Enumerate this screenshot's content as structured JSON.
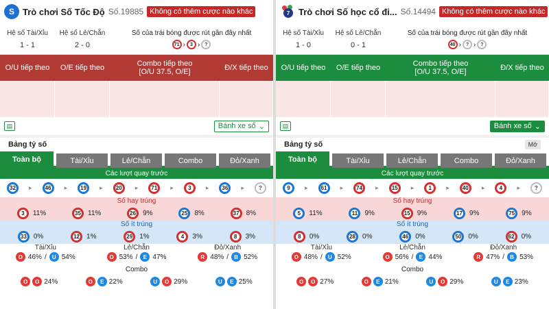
{
  "panels": [
    {
      "title": "Trò chơi Số Tốc Độ",
      "draw": "Số.19885",
      "badge": "Không có thêm cược nào khác",
      "logo": "S",
      "ou_ratio_label": "Hệ số Tài/Xỉu",
      "ou_ratio": "1 - 1",
      "oe_ratio_label": "Hệ số Lẻ/Chẵn",
      "oe_ratio": "2 - 0",
      "recent_label": "Số của trái bóng được rút gần đây nhất",
      "recent": [
        "71",
        "3",
        "?"
      ],
      "headers": {
        "ou": "O/U tiếp theo",
        "oe": "O/E tiếp theo",
        "combo1": "Combo tiếp theo",
        "combo2": "[O/U 37.5, O/E]",
        "rb": "Đ/X tiếp theo"
      },
      "wheel": "Bánh xe số",
      "board": "Bảng tỷ số",
      "mo": "",
      "tabs": [
        "Toàn bộ",
        "Tài/Xỉu",
        "Lẻ/Chẵn",
        "Combo",
        "Đỏ/Xanh"
      ],
      "prev_label": "Các lượt quay trước",
      "prev": [
        "32",
        "46",
        "19",
        "20",
        "71",
        "3",
        "36",
        "?"
      ],
      "hot_label": "Số hay trúng",
      "hot": [
        {
          "n": "3",
          "p": "11%"
        },
        {
          "n": "35",
          "p": "11%"
        },
        {
          "n": "26",
          "p": "9%"
        },
        {
          "n": "25",
          "p": "8%"
        },
        {
          "n": "37",
          "p": "8%"
        }
      ],
      "cold_label": "Số ít trúng",
      "cold": [
        {
          "n": "33",
          "p": "0%"
        },
        {
          "n": "12",
          "p": "1%"
        },
        {
          "n": "29",
          "p": "1%"
        },
        {
          "n": "4",
          "p": "3%"
        },
        {
          "n": "8",
          "p": "3%"
        }
      ],
      "ou": {
        "label": "Tài/Xỉu",
        "a": "O",
        "ap": "46%",
        "b": "U",
        "bp": "54%"
      },
      "oe": {
        "label": "Lẻ/Chẵn",
        "a": "O",
        "ap": "53%",
        "b": "E",
        "bp": "47%"
      },
      "rb": {
        "label": "Đỏ/Xanh",
        "a": "R",
        "ap": "48%",
        "b": "B",
        "bp": "52%"
      },
      "combo_label": "Combo",
      "combos": [
        {
          "a": "O",
          "b": "O",
          "p": "24%"
        },
        {
          "a": "O",
          "b": "E",
          "p": "22%"
        },
        {
          "a": "U",
          "b": "O",
          "p": "29%"
        },
        {
          "a": "U",
          "b": "E",
          "p": "25%"
        }
      ]
    },
    {
      "title": "Trò chơi Số học cổ đi...",
      "draw": "Số.14494",
      "badge": "Không có thêm cược nào khác",
      "logo": "7",
      "ou_ratio_label": "Hệ số Tài/Xỉu",
      "ou_ratio": "1 - 0",
      "oe_ratio_label": "Hệ số Lẻ/Chẵn",
      "oe_ratio": "0 - 1",
      "recent_label": "Số của trái bóng được rút gần đây nhất",
      "recent": [
        "40",
        "?",
        "?"
      ],
      "headers": {
        "ou": "O/U tiếp theo",
        "oe": "O/E tiếp theo",
        "combo1": "Combo tiếp theo",
        "combo2": "[O/U 37.5, O/E]",
        "rb": "Đ/X tiếp theo"
      },
      "wheel": "Bánh xe số",
      "board": "Bảng tỷ số",
      "mo": "Mở",
      "tabs": [
        "Toàn bộ",
        "Tài/Xỉu",
        "Lẻ/Chẵn",
        "Combo",
        "Đỏ/Xanh"
      ],
      "prev_label": "Các lượt quay trước",
      "prev": [
        "9",
        "61",
        "74",
        "15",
        "1",
        "40",
        "4",
        "?"
      ],
      "hot_label": "Số hay trúng",
      "hot": [
        {
          "n": "5",
          "p": "11%"
        },
        {
          "n": "11",
          "p": "9%"
        },
        {
          "n": "15",
          "p": "9%"
        },
        {
          "n": "17",
          "p": "9%"
        },
        {
          "n": "75",
          "p": "9%"
        }
      ],
      "cold_label": "Số ít trúng",
      "cold": [
        {
          "n": "8",
          "p": "0%"
        },
        {
          "n": "28",
          "p": "0%"
        },
        {
          "n": "46",
          "p": "0%"
        },
        {
          "n": "50",
          "p": "0%"
        },
        {
          "n": "62",
          "p": "0%"
        }
      ],
      "ou": {
        "label": "Tài/Xỉu",
        "a": "O",
        "ap": "48%",
        "b": "U",
        "bp": "52%"
      },
      "oe": {
        "label": "Lẻ/Chẵn",
        "a": "O",
        "ap": "56%",
        "b": "E",
        "bp": "44%"
      },
      "rb": {
        "label": "Đỏ/Xanh",
        "a": "R",
        "ap": "47%",
        "b": "B",
        "bp": "53%"
      },
      "combo_label": "Combo",
      "combos": [
        {
          "a": "O",
          "b": "O",
          "p": "27%"
        },
        {
          "a": "O",
          "b": "E",
          "p": "21%"
        },
        {
          "a": "U",
          "b": "O",
          "p": "29%"
        },
        {
          "a": "U",
          "b": "E",
          "p": "23%"
        }
      ]
    }
  ]
}
